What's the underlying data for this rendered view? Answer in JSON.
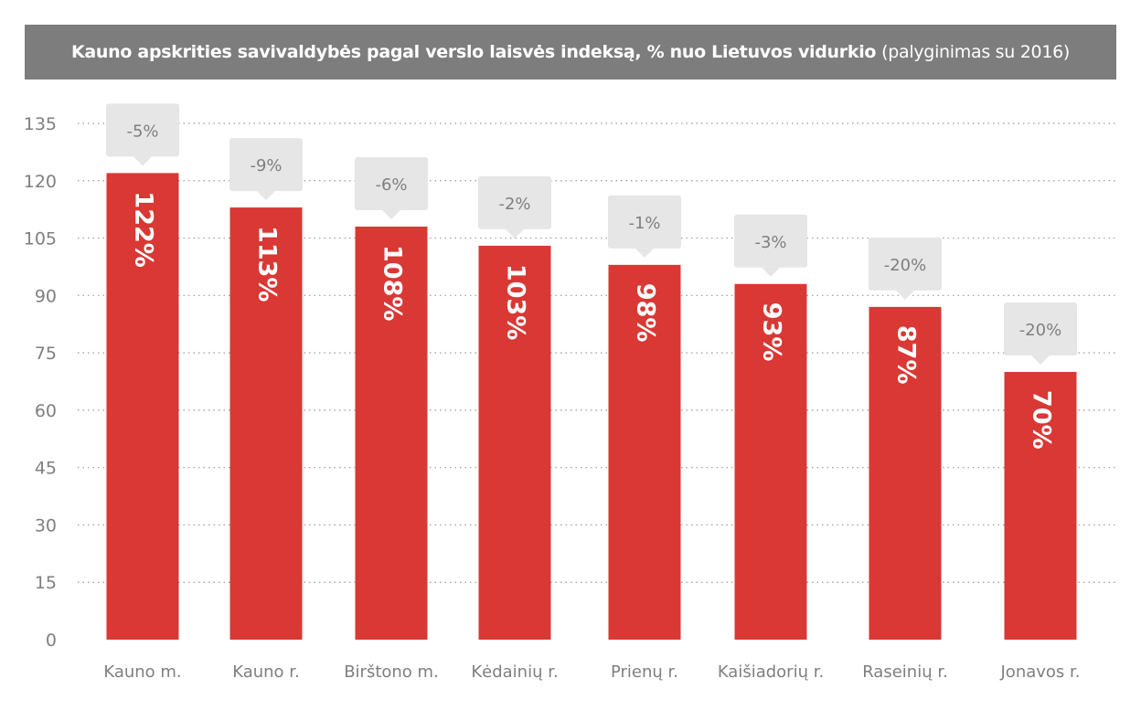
{
  "chart_data": {
    "type": "bar",
    "title": "Kauno apskrities savivaldybės pagal verslo laisvės indeksą, % nuo Lietuvos vidurkio",
    "subtitle": "(palyginimas su 2016)",
    "categories": [
      "Kauno m.",
      "Kauno r.",
      "Birštono m.",
      "Kėdainių r.",
      "Prienų r.",
      "Kaišiadorių r.",
      "Raseinių r.",
      "Jonavos r."
    ],
    "values": [
      122,
      113,
      108,
      103,
      98,
      93,
      87,
      70
    ],
    "value_labels": [
      "122%",
      "113%",
      "108%",
      "103%",
      "98%",
      "93%",
      "87%",
      "70%"
    ],
    "change_labels": [
      "-5%",
      "-9%",
      "-6%",
      "-2%",
      "-1%",
      "-3%",
      "-20%",
      "-20%"
    ],
    "ylim": [
      0,
      135
    ],
    "yticks": [
      0,
      15,
      30,
      45,
      60,
      75,
      90,
      105,
      120,
      135
    ],
    "grid": true,
    "xlabel": "",
    "ylabel": "",
    "colors": {
      "bar": "#d93834",
      "callout": "#e6e6e6",
      "callout_text": "#7f7f7f",
      "title_bg": "#7d7d7d",
      "axis_text": "#7f7f7f"
    }
  }
}
